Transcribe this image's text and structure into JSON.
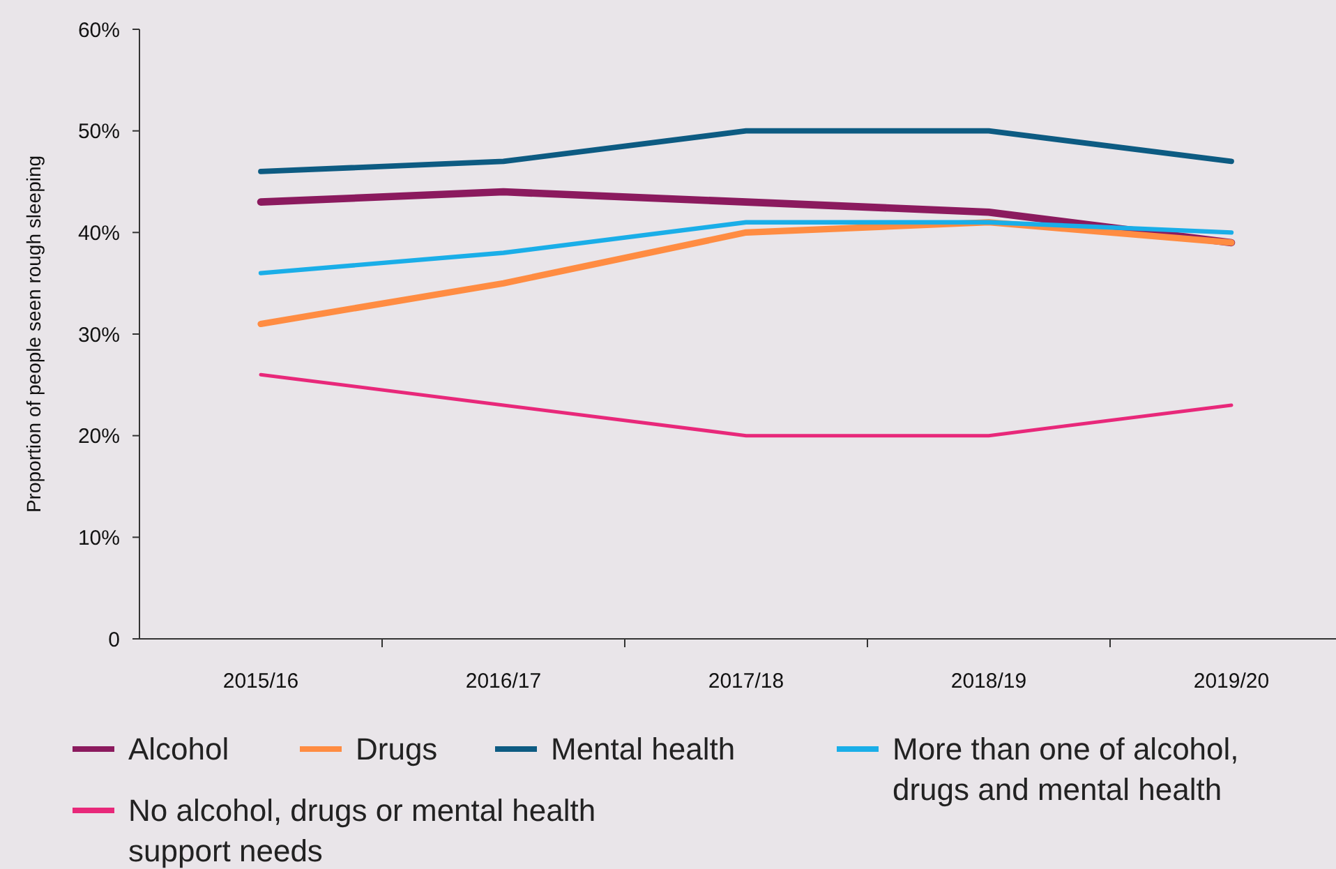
{
  "chart_data": {
    "type": "line",
    "ylabel": "Proportion of people seen rough sleeping",
    "categories": [
      "2015/16",
      "2016/17",
      "2017/18",
      "2018/19",
      "2019/20"
    ],
    "series": [
      {
        "name": "Alcohol",
        "color": "#8b1a5e",
        "values": [
          43,
          44,
          43,
          42,
          39
        ]
      },
      {
        "name": "Drugs",
        "color": "#ff8c42",
        "values": [
          31,
          35,
          40,
          41,
          39
        ]
      },
      {
        "name": "Mental health",
        "color": "#0d5b82",
        "values": [
          46,
          47,
          50,
          50,
          47
        ]
      },
      {
        "name": "More than one of alcohol, drugs and mental health",
        "color": "#1aaee8",
        "values": [
          36,
          38,
          41,
          41,
          40
        ]
      },
      {
        "name": "No alcohol, drugs or mental health support needs",
        "color": "#e8287a",
        "values": [
          26,
          23,
          20,
          20,
          23
        ]
      }
    ],
    "ylim": [
      0,
      60
    ],
    "yticks": [
      0,
      {
        "value": 10,
        "label": "10%"
      },
      {
        "value": 20,
        "label": "20%"
      },
      {
        "value": 30,
        "label": "30%"
      },
      {
        "value": 40,
        "label": "40%"
      },
      {
        "value": 50,
        "label": "50%"
      },
      {
        "value": 60,
        "label": "60%"
      }
    ],
    "grid": false,
    "legend": "bottom",
    "marker": "none",
    "line_style": "solid"
  }
}
